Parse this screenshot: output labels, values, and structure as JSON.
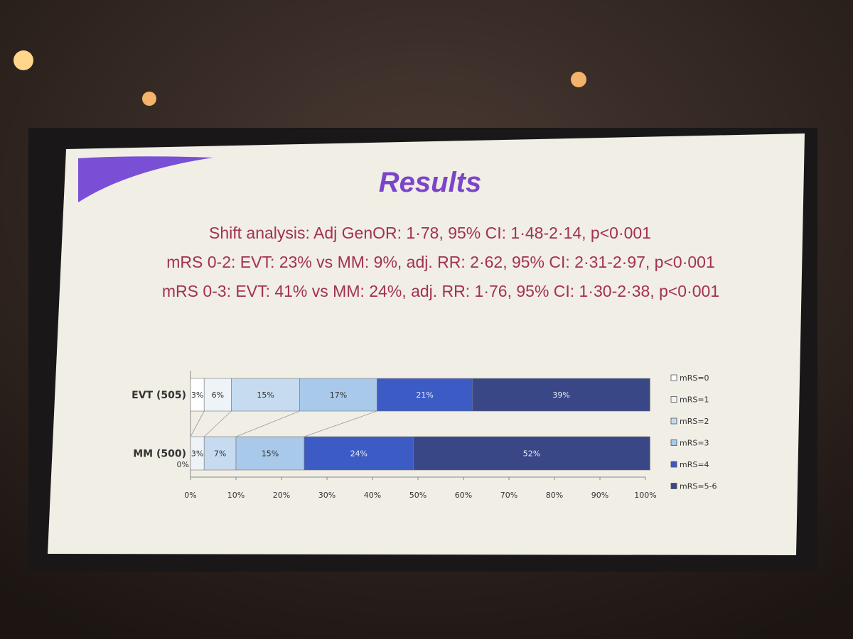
{
  "chart_data": {
    "type": "stacked-bar",
    "orientation": "horizontal",
    "title": "Results",
    "annotations": [
      "Shift analysis: Adj GenOR: 1·78, 95% CI: 1·48-2·14, p<0·001",
      "mRS 0-2: EVT: 23% vs MM: 9%, adj. RR: 2·62, 95% CI: 2·31-2·97, p<0·001",
      "mRS 0-3: EVT: 41% vs MM: 24%, adj. RR: 1·76, 95% CI: 1·30-2·38, p<0·001"
    ],
    "categories": [
      "EVT (505)",
      "MM (500)"
    ],
    "series": [
      {
        "name": "mRS=0",
        "color": "#ffffff",
        "values": [
          3,
          0
        ],
        "value_labels": [
          "3%",
          "0%"
        ]
      },
      {
        "name": "mRS=1",
        "color": "#eef3f8",
        "values": [
          6,
          3
        ],
        "value_labels": [
          "6%",
          "3%"
        ]
      },
      {
        "name": "mRS=2",
        "color": "#c6dbef",
        "values": [
          15,
          7
        ],
        "value_labels": [
          "15%",
          "7%"
        ]
      },
      {
        "name": "mRS=3",
        "color": "#a9c9ea",
        "values": [
          17,
          15
        ],
        "value_labels": [
          "17%",
          "15%"
        ]
      },
      {
        "name": "mRS=4",
        "color": "#3d5bc4",
        "values": [
          21,
          24
        ],
        "value_labels": [
          "21%",
          "24%"
        ]
      },
      {
        "name": "mRS=5-6",
        "color": "#3a4787",
        "values": [
          39,
          52
        ],
        "value_labels": [
          "39%",
          "52%"
        ]
      }
    ],
    "xlim": [
      0,
      100
    ],
    "xticks": [
      {
        "value": 0,
        "label": "0%"
      },
      {
        "value": 10,
        "label": "10%"
      },
      {
        "value": 20,
        "label": "20%"
      },
      {
        "value": 30,
        "label": "30%"
      },
      {
        "value": 40,
        "label": "40%"
      },
      {
        "value": 50,
        "label": "50%"
      },
      {
        "value": 60,
        "label": "60%"
      },
      {
        "value": 70,
        "label": "70%"
      },
      {
        "value": 80,
        "label": "80%"
      },
      {
        "value": 90,
        "label": "90%"
      },
      {
        "value": 100,
        "label": "100%"
      }
    ],
    "legend": "right"
  }
}
